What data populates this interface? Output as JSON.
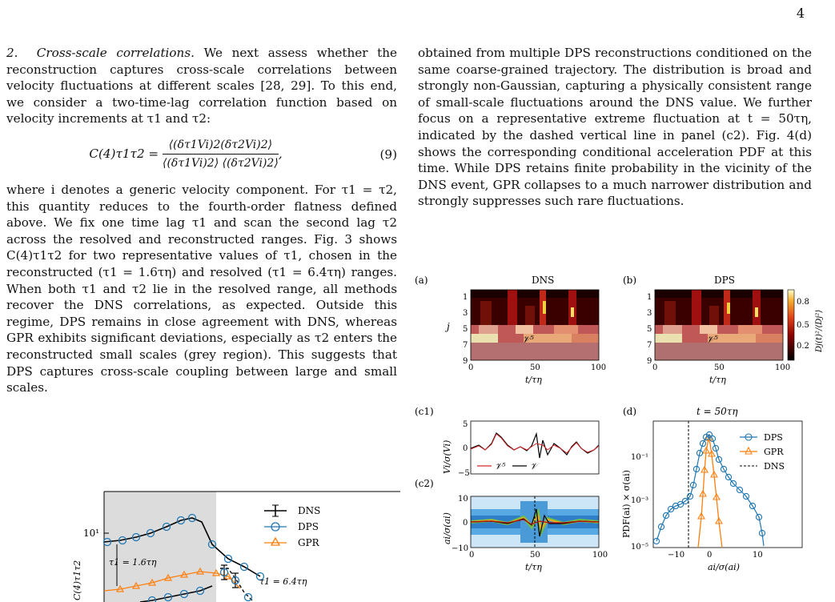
{
  "page_number": "4",
  "left_column": {
    "para1_heading": "2.",
    "para1_title": "Cross-scale correlations.",
    "para1_text": "We next assess whether the reconstruction captures cross-scale correlations between velocity fluctuations at different scales [28, 29]. To this end, we consider a two-time-lag correlation function based on velocity increments at τ1 and τ2:",
    "equation": {
      "lhs": "C(4)τ1τ2 =",
      "numerator": "⟨(δτ1Vi)2(δτ2Vi)2⟩",
      "denominator": "⟨(δτ1Vi)2⟩ ⟨(δτ2Vi)2⟩",
      "number": "(9)"
    },
    "para2_text": "where i denotes a generic velocity component. For τ1 = τ2, this quantity reduces to the fourth-order flatness defined above. We fix one time lag τ1 and scan the second lag τ2 across the resolved and reconstructed ranges. Fig. 3 shows C(4)τ1τ2 for two representative values of τ1, chosen in the reconstructed (τ1 = 1.6τη) and resolved (τ1 = 6.4τη) ranges. When both τ1 and τ2 lie in the resolved range, all methods recover the DNS correlations, as expected. Outside this regime, DPS remains in close agreement with DNS, whereas GPR exhibits significant deviations, especially as τ2 enters the reconstructed small scales (grey region). This suggests that DPS captures cross-scale coupling between large and small scales."
  },
  "right_column": {
    "paragraph": "obtained from multiple DPS reconstructions conditioned on the same coarse-grained trajectory. The distribution is broad and strongly non-Gaussian, capturing a physically consistent range of small-scale fluctuations around the DNS value. We further focus on a representative extreme fluctuation at t = 50τη, indicated by the dashed vertical line in panel (c2). Fig. 4(d) shows the corresponding conditional acceleration PDF at this time. While DPS retains finite probability in the vicinity of the DNS event, GPR collapses to a much narrower distribution and strongly suppresses such rare fluctuations."
  },
  "figure3": {
    "legend": [
      "DNS",
      "DPS",
      "GPR"
    ],
    "ytick": "10¹",
    "ylabel": "C(4)τ1τ2",
    "ann1": "τ1 = 1.6τη",
    "ann2": "τ1 = 6.4τη",
    "colors": {
      "DNS": "#000000",
      "DPS": "#1f77b4",
      "GPR": "#ff7f0e",
      "grey": "#dcdcdc"
    }
  },
  "figure4": {
    "panel_a": {
      "label": "(a)",
      "title": "DNS",
      "inset": "𝒱⁵",
      "yticks": [
        "1",
        "3",
        "5",
        "7",
        "9"
      ],
      "xticks": [
        "0",
        "50",
        "100"
      ],
      "ylabel": "j",
      "xlabel": "t/τη"
    },
    "panel_b": {
      "label": "(b)",
      "title": "DPS",
      "inset": "𝒱⁵",
      "yticks": [
        "1",
        "3",
        "5",
        "7",
        "9"
      ],
      "xticks": [
        "0",
        "50",
        "100"
      ],
      "xlabel": "t/τη",
      "cbar_ticks": [
        "0.8",
        "0.5",
        "0.2"
      ],
      "cbar_label": "Dj(t)²/⟨Dj²⟩"
    },
    "panel_c1": {
      "label": "(c1)",
      "yticks": [
        "5",
        "0",
        "−5"
      ],
      "ylabel": "Vi/σ(Vi)",
      "legend": [
        "𝒱⁵",
        "𝒱"
      ]
    },
    "panel_c2": {
      "label": "(c2)",
      "yticks": [
        "10",
        "0",
        "−10"
      ],
      "xticks": [
        "0",
        "50",
        "100"
      ],
      "ylabel": "ai/σ(ai)",
      "xlabel": "t/τη"
    },
    "panel_d": {
      "label": "(d)",
      "title": "t = 50τη",
      "legend": [
        "DPS",
        "GPR",
        "DNS"
      ],
      "yticks": [
        "10⁻¹",
        "10⁻³",
        "10⁻⁵"
      ],
      "xticks": [
        "−10",
        "0",
        "10"
      ],
      "ylabel": "PDF(ai) × σ(ai)",
      "xlabel": "ai/σ(ai)"
    }
  },
  "chart_data": [
    {
      "type": "line",
      "title": "",
      "xlabel": "",
      "ylabel": "C(4)τ1τ2",
      "series": [
        {
          "name": "DPS",
          "x": [
            1,
            2,
            3,
            4,
            5,
            6,
            7,
            8,
            9,
            10
          ],
          "values": [
            8.5,
            9.2,
            9.7,
            11,
            12.5,
            13,
            12,
            9,
            7,
            6
          ]
        },
        {
          "name": "GPR",
          "x": [
            1,
            2,
            3,
            4,
            5,
            6,
            7,
            8,
            9,
            10
          ],
          "values": [
            3.2,
            3.5,
            3.8,
            4.2,
            4.6,
            5.0,
            5.3,
            5.2,
            4.9,
            4.6
          ]
        }
      ]
    },
    {
      "type": "line",
      "title": "t = 50τη",
      "xlabel": "ai/σ(ai)",
      "ylabel": "PDF(ai) × σ(ai)",
      "series": [
        {
          "name": "DPS",
          "x": [
            -13,
            -11,
            -9,
            -7,
            -5,
            -3,
            -1,
            0,
            1,
            3,
            5,
            7,
            9,
            11
          ],
          "values": [
            1e-05,
            3e-05,
            0.0002,
            0.0007,
            0.002,
            0.01,
            0.1,
            0.28,
            0.1,
            0.01,
            0.002,
            0.0006,
            0.00015,
            1e-05
          ]
        },
        {
          "name": "GPR",
          "x": [
            -3,
            -2,
            -1,
            0,
            1,
            2,
            3
          ],
          "values": [
            1e-05,
            0.002,
            0.1,
            0.3,
            0.1,
            0.002,
            1e-05
          ]
        }
      ]
    }
  ]
}
